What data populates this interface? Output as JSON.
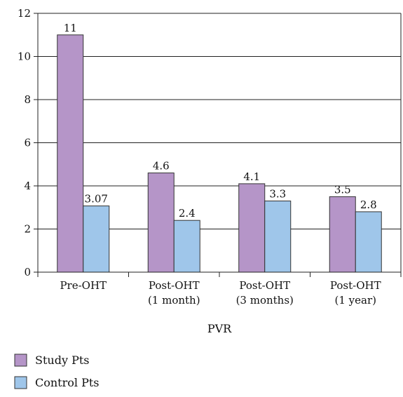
{
  "chart_data": {
    "type": "bar",
    "xlabel": "PVR",
    "ylabel": "",
    "ylim": [
      0,
      12
    ],
    "y_ticks": [
      "0",
      "2",
      "4",
      "6",
      "8",
      "10",
      "12"
    ],
    "grid": "horizontal",
    "legend_position": "bottom-left",
    "categories": [
      {
        "line1": "Pre-OHT",
        "line2": ""
      },
      {
        "line1": "Post-OHT",
        "line2": "(1 month)"
      },
      {
        "line1": "Post-OHT",
        "line2": "(3 months)"
      },
      {
        "line1": "Post-OHT",
        "line2": "(1 year)"
      }
    ],
    "series": [
      {
        "name": "Study Pts",
        "color": "#b595c8",
        "values": [
          11,
          4.6,
          4.1,
          3.5
        ],
        "labels": [
          "11",
          "4.6",
          "4.1",
          "3.5"
        ]
      },
      {
        "name": "Control Pts",
        "color": "#9fc6ea",
        "values": [
          3.07,
          2.4,
          3.3,
          2.8
        ],
        "labels": [
          "3.07",
          "2.4",
          "3.3",
          "2.8"
        ]
      }
    ]
  }
}
